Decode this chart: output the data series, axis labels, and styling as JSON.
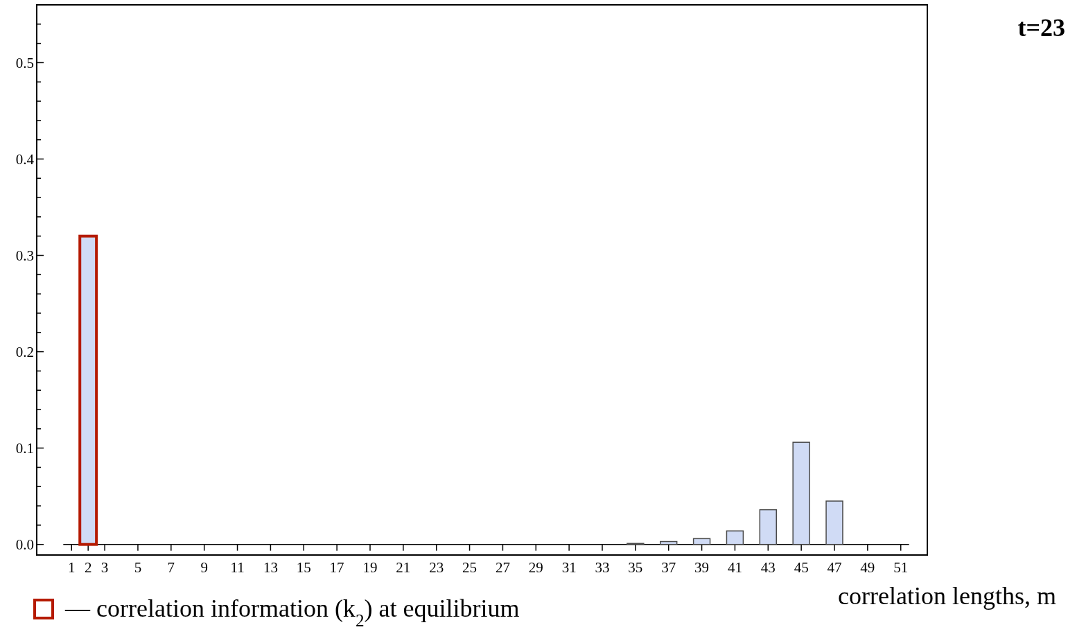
{
  "chart_data": {
    "type": "bar",
    "xlabel": "correlation lengths, m",
    "x": [
      35,
      37,
      39,
      41,
      43,
      45,
      47
    ],
    "series": [
      {
        "color": "#d0dbf5",
        "values": [
          0.001,
          0.003,
          0.006,
          0.014,
          0.036,
          0.106,
          0.045
        ]
      },
      {
        "name": "— correlation information (k$_{2}$) at equilibrium",
        "color": "#b51a00",
        "x": [
          2
        ],
        "values": [
          0.32
        ]
      }
    ],
    "xlim": [
      -1.1,
      52.6
    ],
    "xticks": [
      1,
      2,
      3,
      5,
      7,
      9,
      11,
      13,
      15,
      17,
      19,
      21,
      23,
      25,
      27,
      29,
      31,
      33,
      35,
      37,
      39,
      41,
      43,
      45,
      47,
      49,
      51
    ],
    "ylim": [
      -0.011,
      0.56
    ],
    "yticks": [
      {
        "value": 0,
        "label": "0.0"
      },
      {
        "value": 0.02,
        "label": null
      },
      {
        "value": 0.04,
        "label": null
      },
      {
        "value": 0.06,
        "label": null
      },
      {
        "value": 0.08,
        "label": null
      },
      0.1,
      {
        "value": 0.12,
        "label": null
      },
      {
        "value": 0.14,
        "label": null
      },
      {
        "value": 0.16,
        "label": null
      },
      {
        "value": 0.18,
        "label": null
      },
      0.2,
      {
        "value": 0.22,
        "label": null
      },
      {
        "value": 0.24,
        "label": null
      },
      {
        "value": 0.26,
        "label": null
      },
      {
        "value": 0.28,
        "label": null
      },
      0.3,
      {
        "value": 0.32,
        "label": null
      },
      {
        "value": 0.34,
        "label": null
      },
      {
        "value": 0.36,
        "label": null
      },
      {
        "value": 0.38,
        "label": null
      },
      0.4,
      {
        "value": 0.42,
        "label": null
      },
      {
        "value": 0.44,
        "label": null
      },
      {
        "value": 0.46,
        "label": null
      },
      {
        "value": 0.48,
        "label": null
      },
      0.5,
      {
        "value": 0.52,
        "label": null
      },
      {
        "value": 0.54,
        "label": null
      }
    ],
    "legend": "bottom left",
    "annotations": [
      "t=23"
    ]
  }
}
